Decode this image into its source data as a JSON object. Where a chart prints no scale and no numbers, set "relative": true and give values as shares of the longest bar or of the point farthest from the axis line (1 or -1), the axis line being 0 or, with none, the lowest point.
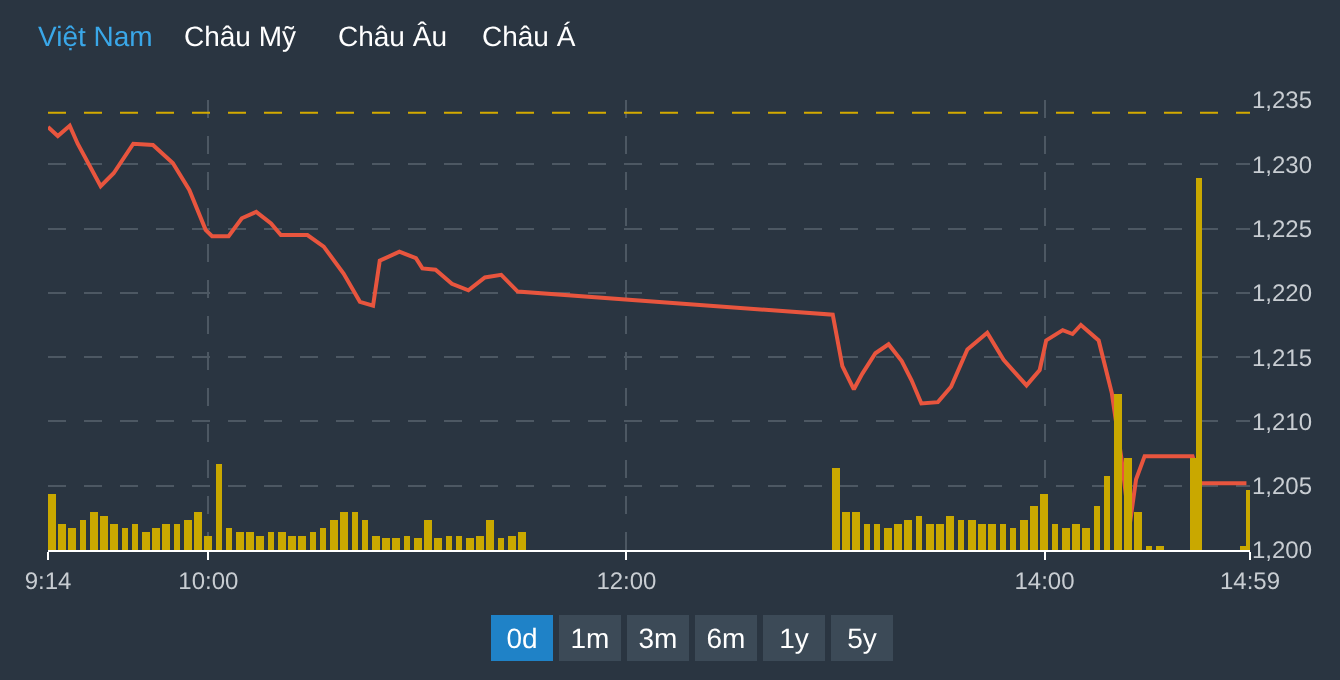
{
  "chart_data": [
    {
      "type": "line",
      "color": "#e8553e",
      "annotations": [
        "Việt Nam",
        "Châu Mỹ",
        "Châu Âu",
        "Châu Á",
        "0d",
        "1m",
        "3m",
        "6m",
        "1y",
        "5y"
      ],
      "x": [
        9.233,
        9.28,
        9.337,
        9.375,
        9.485,
        9.547,
        9.641,
        9.735,
        9.83,
        9.909,
        9.987,
        10.018,
        10.097,
        10.16,
        10.229,
        10.3,
        10.347,
        10.474,
        10.552,
        10.647,
        10.725,
        10.788,
        10.82,
        10.914,
        10.993,
        11.024,
        11.087,
        11.165,
        11.244,
        11.323,
        11.401,
        11.48,
        12.987,
        13.033,
        13.088,
        13.128,
        13.191,
        13.254,
        13.317,
        13.364,
        13.411,
        13.49,
        13.553,
        13.631,
        13.726,
        13.804,
        13.914,
        13.977,
        14.008,
        14.087,
        14.134,
        14.174,
        14.259,
        14.322,
        14.369,
        14.407,
        14.438,
        14.479,
        14.708,
        14.746,
        14.966
      ],
      "values": [
        1232.9,
        1232.2,
        1233.0,
        1231.6,
        1228.3,
        1229.3,
        1231.6,
        1231.5,
        1230.1,
        1228.0,
        1224.9,
        1224.4,
        1224.4,
        1225.8,
        1226.3,
        1225.4,
        1224.5,
        1224.5,
        1223.6,
        1221.5,
        1219.3,
        1219.0,
        1222.5,
        1223.2,
        1222.7,
        1221.9,
        1221.8,
        1220.7,
        1220.2,
        1221.2,
        1221.4,
        1220.1,
        1218.3,
        1214.3,
        1212.5,
        1213.7,
        1215.3,
        1216.0,
        1214.7,
        1213.2,
        1211.4,
        1211.5,
        1212.7,
        1215.6,
        1216.9,
        1214.8,
        1212.8,
        1214.0,
        1216.3,
        1217.1,
        1216.8,
        1217.5,
        1216.3,
        1212.2,
        1207.0,
        1201.9,
        1205.5,
        1207.3,
        1207.3,
        1205.2,
        1205.2
      ],
      "xlim": [
        9.233,
        14.983
      ],
      "xticks": [
        {
          "value": 9.233,
          "label": "9:14"
        },
        {
          "value": 10,
          "label": "10:00"
        },
        {
          "value": 12,
          "label": "12:00"
        },
        {
          "value": 14,
          "label": "14:00"
        },
        {
          "value": 14.983,
          "label": "14:59"
        }
      ],
      "ylim": [
        1200,
        1235
      ],
      "yticks": [
        {
          "value": 1200,
          "label": "1,200"
        },
        {
          "value": 1205,
          "label": "1,205"
        },
        {
          "value": 1210,
          "label": "1,210"
        },
        {
          "value": 1215,
          "label": "1,215"
        },
        {
          "value": 1220,
          "label": "1,220"
        },
        {
          "value": 1225,
          "label": "1,225"
        },
        {
          "value": 1230,
          "label": "1,230"
        },
        {
          "value": 1235,
          "label": "1,235"
        }
      ],
      "ref_lines": [
        {
          "axis": "y",
          "value": 1234,
          "color": "#d4aa00",
          "line_style": "dashed"
        }
      ],
      "grid": true
    },
    {
      "type": "bar",
      "relative": true,
      "color": "#c9a800",
      "xlim": [
        9.233,
        14.983
      ],
      "x": [
        9.25,
        9.3,
        9.35,
        9.4,
        9.45,
        9.5,
        9.55,
        9.6,
        9.65,
        9.7,
        9.75,
        9.8,
        9.85,
        9.9,
        9.95,
        10.0,
        10.05,
        10.1,
        10.15,
        10.2,
        10.25,
        10.3,
        10.35,
        10.4,
        10.45,
        10.5,
        10.55,
        10.6,
        10.65,
        10.7,
        10.75,
        10.8,
        10.85,
        10.9,
        10.95,
        11.0,
        11.05,
        11.1,
        11.15,
        11.2,
        11.25,
        11.3,
        11.35,
        11.4,
        11.45,
        11.5,
        13.0,
        13.05,
        13.1,
        13.15,
        13.2,
        13.25,
        13.3,
        13.35,
        13.4,
        13.45,
        13.5,
        13.55,
        13.6,
        13.65,
        13.7,
        13.75,
        13.8,
        13.85,
        13.9,
        13.95,
        14.0,
        14.05,
        14.1,
        14.15,
        14.2,
        14.25,
        14.3,
        14.35,
        14.4,
        14.45,
        14.5,
        14.55,
        14.71,
        14.74,
        14.95,
        14.98
      ],
      "values": [
        0.15,
        0.07,
        0.06,
        0.08,
        0.1,
        0.09,
        0.07,
        0.06,
        0.07,
        0.05,
        0.06,
        0.07,
        0.07,
        0.08,
        0.1,
        0.04,
        0.23,
        0.06,
        0.05,
        0.05,
        0.04,
        0.05,
        0.05,
        0.04,
        0.04,
        0.05,
        0.06,
        0.08,
        0.1,
        0.1,
        0.08,
        0.04,
        0.03,
        0.03,
        0.04,
        0.03,
        0.08,
        0.03,
        0.04,
        0.04,
        0.03,
        0.04,
        0.08,
        0.03,
        0.04,
        0.05,
        0.22,
        0.1,
        0.1,
        0.07,
        0.07,
        0.06,
        0.07,
        0.08,
        0.09,
        0.07,
        0.07,
        0.09,
        0.08,
        0.08,
        0.07,
        0.07,
        0.07,
        0.06,
        0.08,
        0.12,
        0.15,
        0.07,
        0.06,
        0.07,
        0.06,
        0.12,
        0.2,
        0.42,
        0.25,
        0.1,
        0.01,
        0.01,
        0.25,
        1.0,
        0.01,
        0.16
      ]
    }
  ]
}
